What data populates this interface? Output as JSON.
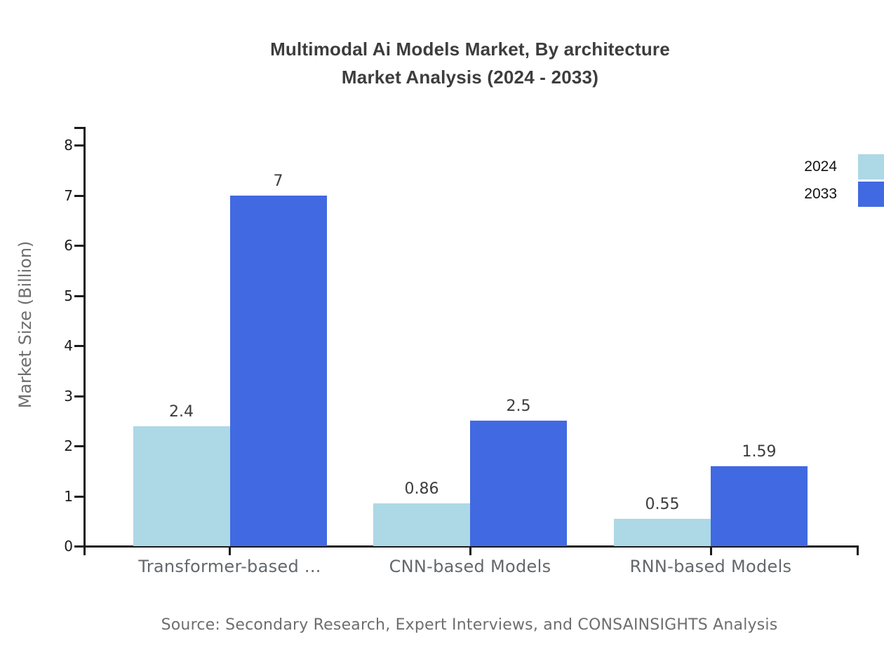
{
  "title": {
    "line1": "Multimodal Ai Models Market, By architecture",
    "line2": "Market Analysis (2024 - 2033)"
  },
  "legend": [
    {
      "label": "2024",
      "color": "#ADD8E6"
    },
    {
      "label": "2033",
      "color": "#4169E1"
    }
  ],
  "source": "Source: Secondary Research, Expert Interviews, and CONSAINSIGHTS Analysis",
  "chart_data": {
    "type": "bar",
    "title": "Multimodal Ai Models Market, By architecture Market Analysis (2024 - 2033)",
    "categories": [
      "Transformer-based ...",
      "CNN-based Models",
      "RNN-based Models"
    ],
    "series": [
      {
        "name": "2024",
        "color": "#ADD8E6",
        "values": [
          2.4,
          0.86,
          0.55
        ]
      },
      {
        "name": "2033",
        "color": "#4169E1",
        "values": [
          7,
          2.5,
          1.59
        ]
      }
    ],
    "xlabel": "",
    "ylabel": "Market Size (Billion)",
    "ylim": [
      0,
      8
    ],
    "yticks": [
      0,
      1,
      2,
      3,
      4,
      5,
      6,
      7,
      8
    ],
    "grid": false,
    "legend_position": "top-right",
    "bar_value_labels_shown": true
  }
}
